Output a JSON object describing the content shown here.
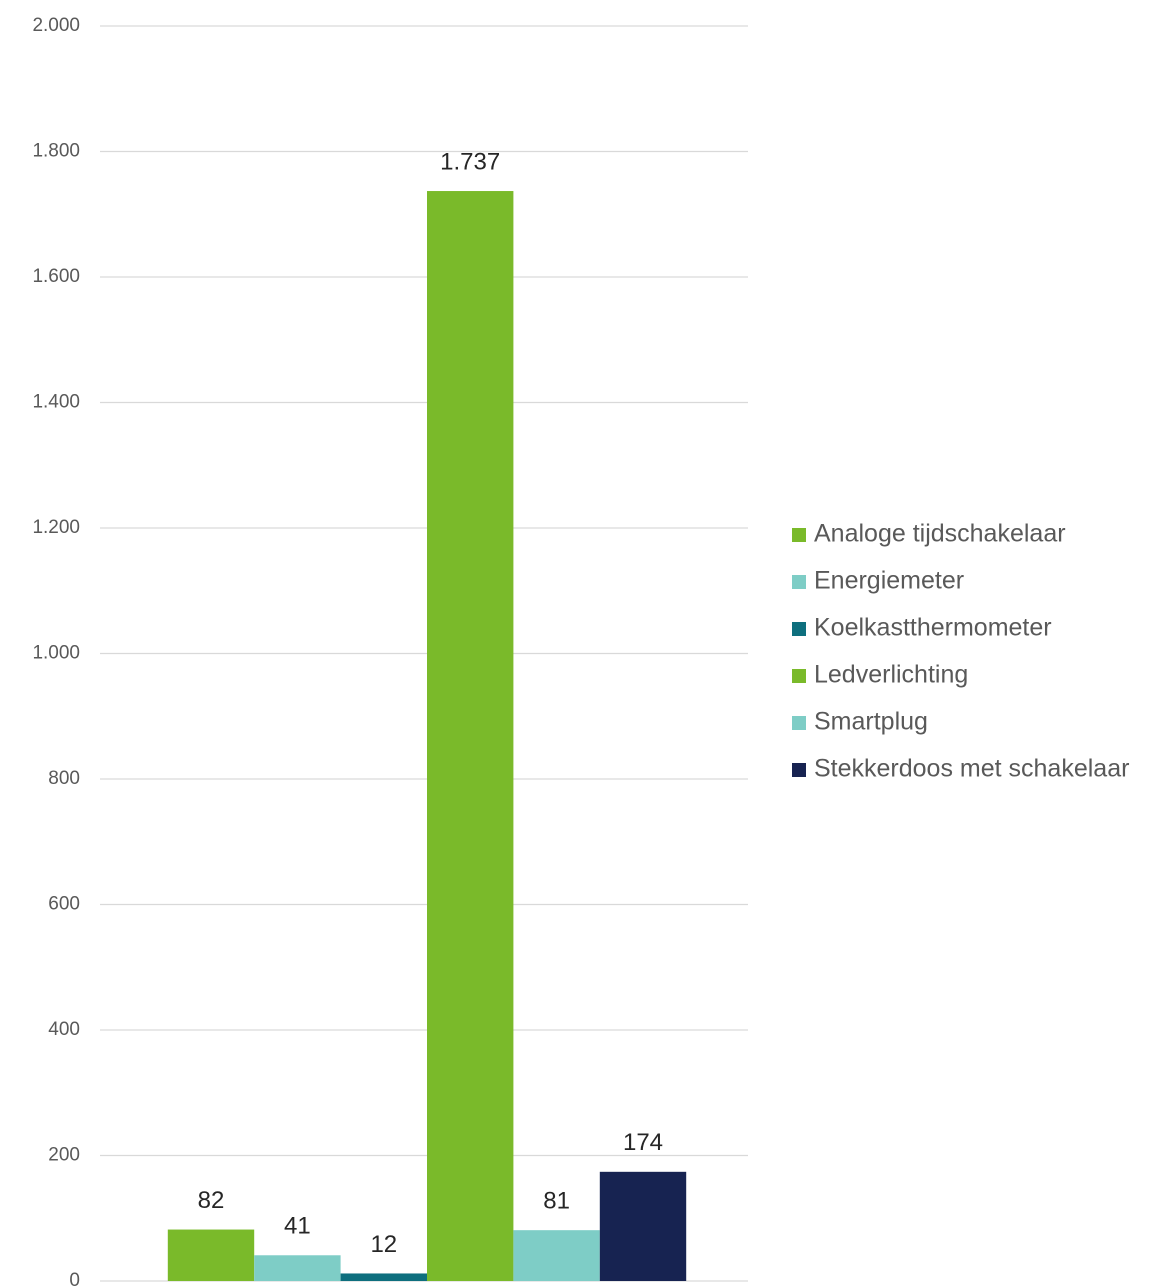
{
  "chart_data": {
    "type": "bar",
    "categories": [
      null
    ],
    "series": [
      {
        "name": "Analoge tijdschakelaar",
        "color": "#7aba2a",
        "values": [
          82
        ]
      },
      {
        "name": "Energiemeter",
        "color": "#7ecdc6",
        "values": [
          41
        ]
      },
      {
        "name": "Koelkastthermometer",
        "color": "#0e6f7e",
        "values": [
          12
        ]
      },
      {
        "name": "Ledverlichting",
        "color": "#7aba2a",
        "values": [
          1737
        ],
        "value_labels": [
          "1.737"
        ]
      },
      {
        "name": "Smartplug",
        "color": "#7ecdc6",
        "values": [
          81
        ]
      },
      {
        "name": "Stekkerdoos met schakelaar",
        "color": "#172351",
        "values": [
          174
        ]
      }
    ],
    "ylim": [
      0,
      2000
    ],
    "yticks": [
      0,
      200,
      400,
      600,
      800,
      {
        "value": 1000,
        "label": "1.000"
      },
      {
        "value": 1200,
        "label": "1.200"
      },
      {
        "value": 1400,
        "label": "1.400"
      },
      {
        "value": 1600,
        "label": "1.600"
      },
      {
        "value": 1800,
        "label": "1.800"
      },
      {
        "value": 2000,
        "label": "2.000"
      }
    ],
    "grid": true,
    "legend": "right"
  }
}
